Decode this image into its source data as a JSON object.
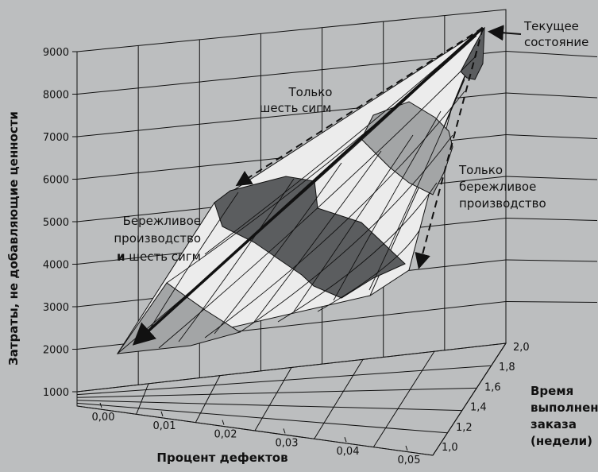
{
  "chart_data": {
    "type": "surface",
    "background": "#bcbebf",
    "y_axis": {
      "label": "Затраты, не добавляющие ценности",
      "ticks": [
        "1000",
        "2000",
        "3000",
        "4000",
        "5000",
        "6000",
        "7000",
        "8000",
        "9000"
      ],
      "range": [
        1000,
        9000
      ]
    },
    "x_axis": {
      "label": "Процент дефектов",
      "ticks": [
        "0,00",
        "0,01",
        "0,02",
        "0,03",
        "0,04",
        "0,05"
      ],
      "range": [
        0.0,
        0.05
      ]
    },
    "z_axis": {
      "label_lines": [
        "Время",
        "выполнения",
        "заказа",
        "(недели)"
      ],
      "ticks": [
        "1,0",
        "1,2",
        "1,4",
        "1,6",
        "1,8",
        "2,0"
      ],
      "range": [
        1.0,
        2.0
      ]
    },
    "points": [
      {
        "name": "Текущее состояние",
        "defect_pct": 0.05,
        "lead_time_weeks": 2.0,
        "cost": 9000
      },
      {
        "name": "Только шесть сигм",
        "defect_pct": 0.0,
        "lead_time_weeks": 2.0,
        "cost": 6000
      },
      {
        "name": "Только бережливое производство",
        "defect_pct": 0.05,
        "lead_time_weeks": 1.0,
        "cost": 4000
      },
      {
        "name": "Бережливое производство и шесть сигм",
        "defect_pct": 0.0,
        "lead_time_weeks": 1.0,
        "cost": 2000
      }
    ],
    "annotations": {
      "current": [
        "Текущее",
        "состояние"
      ],
      "six_sigma": [
        "Только",
        "шесть сигм"
      ],
      "lean": [
        "Только",
        "бережливое",
        "производство"
      ],
      "lean_six_sigma": [
        "Бережливое",
        "производство"
      ],
      "lean_six_sigma_last_bold": "и",
      "lean_six_sigma_last_rest": " шесть сигм"
    },
    "colors": {
      "surface_light": "#ececec",
      "band_mid": "#a3a5a6",
      "band_dark": "#5b5d5f",
      "line": "#111111"
    }
  }
}
